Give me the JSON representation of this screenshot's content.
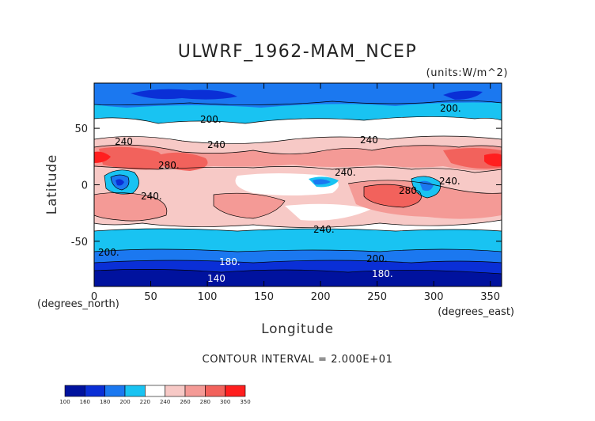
{
  "chart_data": {
    "type": "heatmap",
    "title": "ULWRF_1962-MAM_NCEP",
    "units": "(units:W/m^2)",
    "xlabel": "Longitude",
    "ylabel": "Latitude",
    "x_unit": "(degrees_east)",
    "y_unit": "(degrees_north)",
    "xlim": [
      0,
      360
    ],
    "ylim": [
      -90,
      90
    ],
    "x_ticks": [
      "0",
      "50",
      "100",
      "150",
      "200",
      "250",
      "300",
      "350"
    ],
    "y_ticks": [
      "50",
      "0",
      "-50"
    ],
    "contour_interval": "CONTOUR INTERVAL = 2.000E+01",
    "contour_labels": [
      "200.",
      "200.",
      "240",
      "240",
      "280.",
      "240.",
      "240.",
      "280.",
      "240.",
      "240.",
      "200.",
      "200.",
      "180.",
      "180.",
      "140",
      "240"
    ],
    "colorbar": {
      "levels": [
        "100",
        "160",
        "180",
        "200",
        "220",
        "240",
        "260",
        "280",
        "300",
        "350"
      ],
      "colors": [
        "#00129e",
        "#0a2fd6",
        "#1b78f0",
        "#19c3f2",
        "#ffffff",
        "#f7c9c6",
        "#f49a96",
        "#f2625c",
        "#ff1f1f"
      ]
    },
    "grid": false
  }
}
